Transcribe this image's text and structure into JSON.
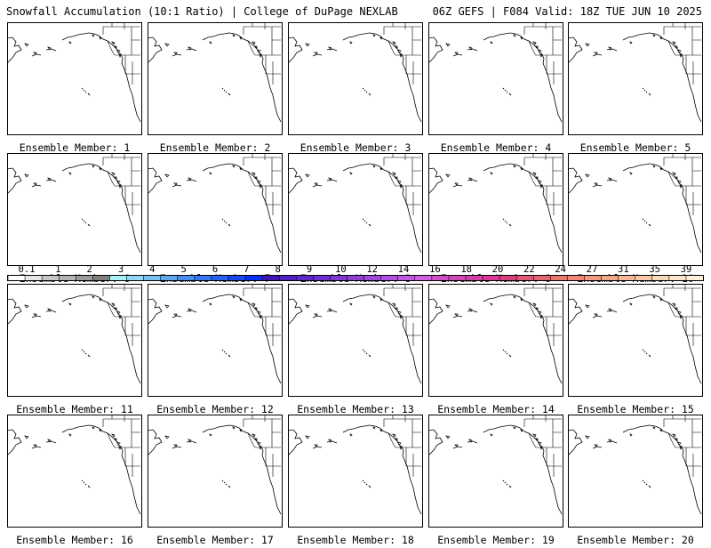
{
  "header": {
    "left_title": "Snowfall Accumulation (10:1 Ratio) | College of DuPage NEXLAB",
    "right_title": "06Z GEFS | F084 Valid: 18Z TUE JUN 10 2025"
  },
  "panels": [
    {
      "label": "Ensemble Member: 1"
    },
    {
      "label": "Ensemble Member: 2"
    },
    {
      "label": "Ensemble Member: 3"
    },
    {
      "label": "Ensemble Member: 4"
    },
    {
      "label": "Ensemble Member: 5"
    },
    {
      "label": "Ensemble Member: 6"
    },
    {
      "label": "Ensemble Member: 7"
    },
    {
      "label": "Ensemble Member: 8"
    },
    {
      "label": "Ensemble Member: 9"
    },
    {
      "label": "Ensemble Member: 10"
    },
    {
      "label": "Ensemble Member: 11"
    },
    {
      "label": "Ensemble Member: 12"
    },
    {
      "label": "Ensemble Member: 13"
    },
    {
      "label": "Ensemble Member: 14"
    },
    {
      "label": "Ensemble Member: 15"
    },
    {
      "label": "Ensemble Member: 16"
    },
    {
      "label": "Ensemble Member: 17"
    },
    {
      "label": "Ensemble Member: 18"
    },
    {
      "label": "Ensemble Member: 19"
    },
    {
      "label": "Ensemble Member: 20"
    }
  ],
  "colorbar": {
    "labels": [
      "0.1",
      "1",
      "2",
      "3",
      "4",
      "5",
      "6",
      "7",
      "8",
      "9",
      "10",
      "12",
      "14",
      "16",
      "18",
      "20",
      "22",
      "24",
      "27",
      "31",
      "35",
      "39"
    ],
    "colors": [
      "#ffffff",
      "#e6e6e6",
      "#c8c8c8",
      "#b4b4b4",
      "#9a9a9a",
      "#808080",
      "#a8f0f8",
      "#90d8f8",
      "#78c0f0",
      "#60a8f0",
      "#4890f0",
      "#3878f0",
      "#2860f0",
      "#1848f0",
      "#0830f0",
      "#4018b0",
      "#5020c0",
      "#6028c8",
      "#7030d0",
      "#8038d0",
      "#9040d0",
      "#a048d8",
      "#b050e0",
      "#c058e0",
      "#d060e0",
      "#d050c8",
      "#d048b8",
      "#d040a8",
      "#d83898",
      "#d84080",
      "#e05878",
      "#e06870",
      "#e87870",
      "#f08878",
      "#f09880",
      "#f0a888",
      "#f8b898",
      "#f8c8a8",
      "#f8d8b8",
      "#fbe4c8",
      "#fdefd8"
    ]
  }
}
